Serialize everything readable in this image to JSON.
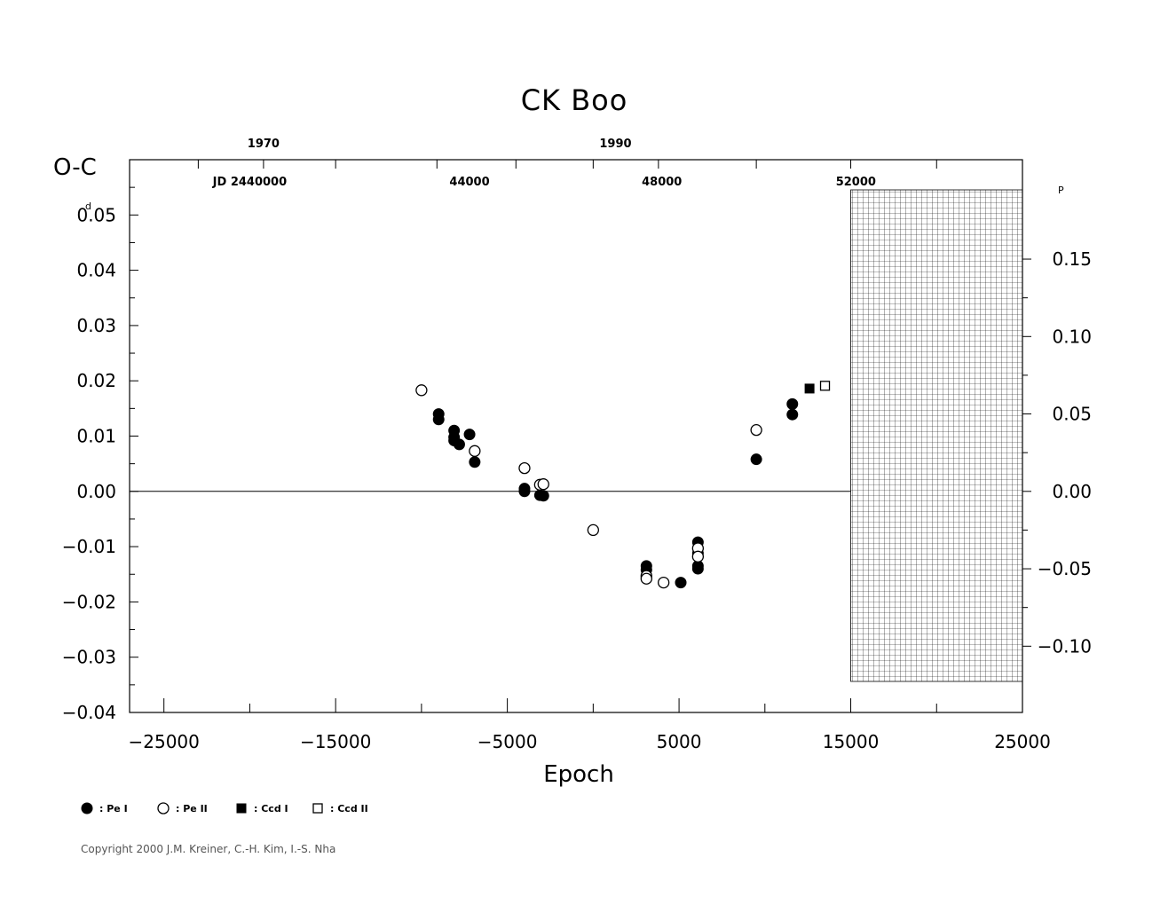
{
  "chart_data": {
    "type": "scatter",
    "title": "CK  Boo",
    "xlabel": "Epoch",
    "ylabel": "O-C",
    "ylabel_unit": "d",
    "right_axis_unit": "P",
    "xlim": [
      -27000,
      25000
    ],
    "ylim": [
      -0.04,
      0.06
    ],
    "x_ticks": [
      -25000,
      -15000,
      -5000,
      5000,
      15000,
      25000
    ],
    "x_tick_labels": [
      "−25000",
      "−15000",
      "−5000",
      "5000",
      "15000",
      "25000"
    ],
    "y_ticks": [
      0.05,
      0.04,
      0.03,
      0.02,
      0.01,
      0.0,
      -0.01,
      -0.02,
      -0.03,
      -0.04
    ],
    "y_tick_labels": [
      "0.05",
      "0.04",
      "0.03",
      "0.02",
      "0.01",
      "0.00",
      "−0.01",
      "−0.02",
      "−0.03",
      "−0.04"
    ],
    "right_ticks": [
      0.15,
      0.1,
      0.05,
      0.0,
      -0.05,
      -0.1
    ],
    "right_tick_labels": [
      "0.15",
      "0.10",
      "0.05",
      "0.00",
      "−0.05",
      "−0.10"
    ],
    "right_scale_factor": 3.57,
    "top_year_labels": [
      {
        "x": -19200,
        "label": "1970"
      },
      {
        "x": 1300,
        "label": "1990"
      }
    ],
    "top_jd_labels": [
      {
        "x": -20000,
        "label": "JD  2440000"
      },
      {
        "x": -7200,
        "label": "44000"
      },
      {
        "x": 4000,
        "label": "48000"
      },
      {
        "x": 15300,
        "label": "52000"
      }
    ],
    "hatched_region_x": [
      15000,
      25000
    ],
    "zero_line": true,
    "series": [
      {
        "name": ": Pe  I",
        "marker": "filled-circle",
        "points": [
          [
            -9000,
            0.014
          ],
          [
            -9000,
            0.013
          ],
          [
            -8100,
            0.011
          ],
          [
            -8100,
            0.0098
          ],
          [
            -8100,
            0.0092
          ],
          [
            -7800,
            0.0085
          ],
          [
            -7200,
            0.0103
          ],
          [
            -6900,
            0.0053
          ],
          [
            -4000,
            0.0005
          ],
          [
            -4000,
            0.0
          ],
          [
            -3100,
            -0.0007
          ],
          [
            -2900,
            -0.0008
          ],
          [
            3100,
            -0.0135
          ],
          [
            3100,
            -0.0142
          ],
          [
            5100,
            -0.0165
          ],
          [
            6100,
            -0.0092
          ],
          [
            6100,
            -0.0112
          ],
          [
            6100,
            -0.0135
          ],
          [
            6100,
            -0.014
          ],
          [
            9500,
            0.0058
          ],
          [
            11600,
            0.0158
          ],
          [
            11600,
            0.0139
          ]
        ]
      },
      {
        "name": ": Pe  II",
        "marker": "open-circle",
        "points": [
          [
            -10000,
            0.0183
          ],
          [
            -6900,
            0.0073
          ],
          [
            -4000,
            0.0042
          ],
          [
            -3100,
            0.0012
          ],
          [
            -2900,
            0.0013
          ],
          [
            0,
            -0.007
          ],
          [
            3100,
            -0.0153
          ],
          [
            3100,
            -0.0158
          ],
          [
            4100,
            -0.0165
          ],
          [
            6100,
            -0.0103
          ],
          [
            6100,
            -0.0118
          ],
          [
            9500,
            0.0111
          ]
        ]
      },
      {
        "name": ": Ccd  I",
        "marker": "filled-square",
        "points": [
          [
            12600,
            0.0186
          ]
        ]
      },
      {
        "name": ": Ccd  II",
        "marker": "open-square",
        "points": [
          [
            13500,
            0.0191
          ]
        ]
      }
    ]
  },
  "copyright": "Copyright 2000 J.M. Kreiner, C.-H. Kim, I.-S. Nha"
}
